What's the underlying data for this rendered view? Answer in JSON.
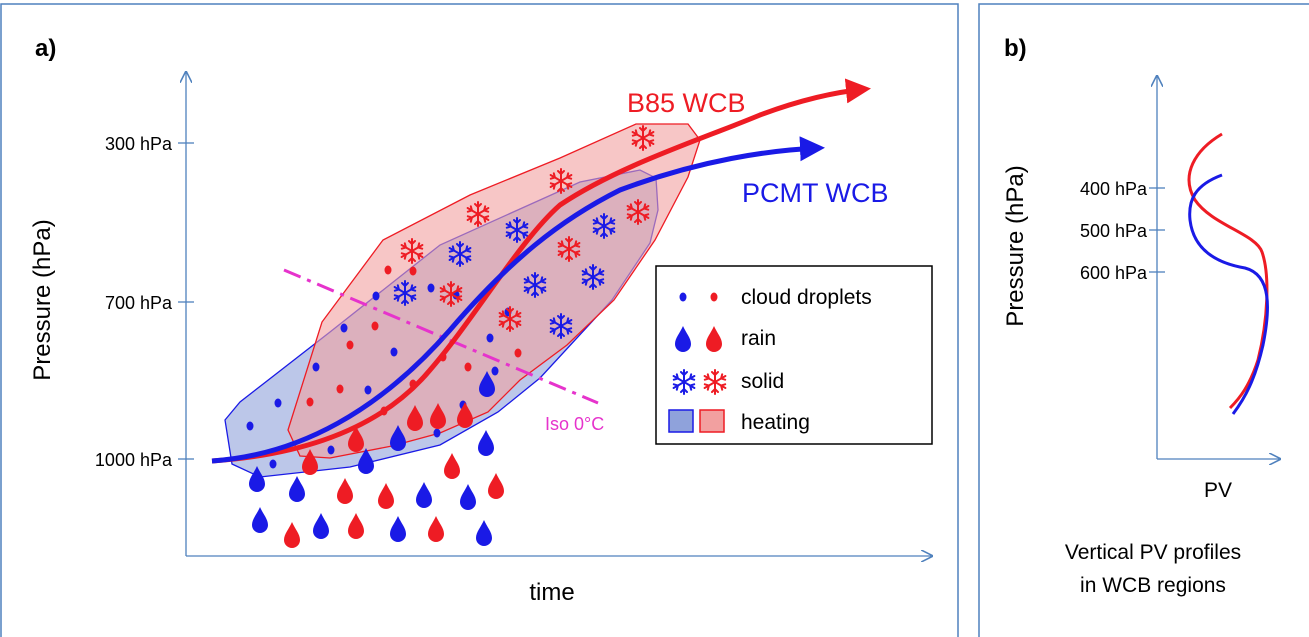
{
  "panel_a": {
    "label": "a)",
    "y_axis_label": "Pressure (hPa)",
    "x_axis_label": "time",
    "ticks": [
      "300 hPa",
      "700 hPa",
      "1000 hPa"
    ],
    "b85_label": "B85 WCB",
    "pcmt_label": "PCMT WCB",
    "iso_label": "Iso 0°C",
    "legend": {
      "cloud": "cloud droplets",
      "rain": "rain",
      "solid": "solid",
      "heating": "heating"
    }
  },
  "panel_b": {
    "label": "b)",
    "y_axis_label": "Pressure (hPa)",
    "x_axis_label": "PV",
    "ticks": [
      "400 hPa",
      "500 hPa",
      "600 hPa"
    ],
    "caption_line1": "Vertical PV profiles",
    "caption_line2": "in WCB regions"
  },
  "colors": {
    "red": "#ee1c24",
    "blue": "#1a1ae6",
    "axis": "#4f81bd",
    "magenta": "#e633cc",
    "red_fill": "#f2a0a0",
    "blue_fill": "#8fa2db"
  }
}
